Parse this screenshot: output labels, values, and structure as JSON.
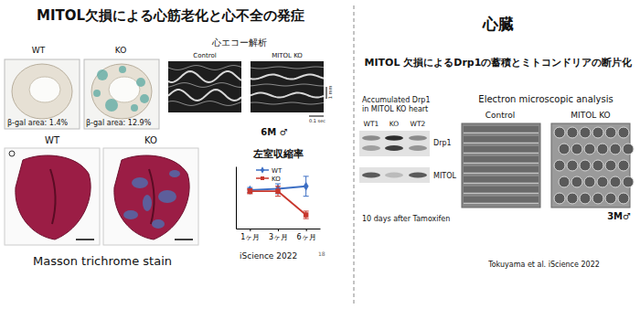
{
  "slide": {
    "left": {
      "title": "MITOL欠損による心筋老化と心不全の発症",
      "bgal": {
        "wt_label": "WT",
        "ko_label": "KO",
        "wt_area": "β-gal area: 1.4%",
        "ko_area": "β-gal area: 12.9%"
      },
      "echo": {
        "title": "心エコー解析",
        "control_label": "Control",
        "ko_label": "MITOL KO",
        "scale_y": "1 mm",
        "scale_x": "0.1 sec",
        "note": "6M ♂"
      },
      "masson": {
        "wt_label": "WT",
        "ko_label": "KO",
        "caption": "Masson trichrome stain"
      },
      "citation": "iScience 2022",
      "page": "18"
    },
    "right": {
      "title": "心臓",
      "subtitle": "MITOL 欠損によるDrp1の蓄積とミトコンドリアの断片化",
      "blot": {
        "caption_lines": [
          "Accumulated Drp1",
          "in MITOL KO heart"
        ],
        "lanes": [
          "WT1",
          "KO",
          "WT2"
        ],
        "bands": [
          "Drp1",
          "MITOL"
        ],
        "note": "10 days after Tamoxifen"
      },
      "em": {
        "title": "Electron microscopic analysis",
        "control_label": "Control",
        "ko_label": "MITOL KO",
        "note": "3M♂"
      },
      "citation": "Tokuyama et al. iScience 2022"
    }
  },
  "chart_data": {
    "type": "line",
    "title": "左室収縮率",
    "categories": [
      "1ヶ月",
      "3ヶ月",
      "6ヶ月"
    ],
    "series": [
      {
        "name": "WT",
        "color": "#3d6fc4",
        "marker": "diamond",
        "values": [
          51,
          52,
          54
        ],
        "errors": [
          2,
          4,
          8
        ]
      },
      {
        "name": "KO",
        "color": "#c8372d",
        "marker": "square",
        "values": [
          50,
          50,
          31
        ],
        "errors": [
          2,
          4,
          3
        ]
      }
    ],
    "ylim": [
      20,
      70
    ],
    "legend": "upper-left",
    "tick_labels": "x",
    "grid": false
  }
}
